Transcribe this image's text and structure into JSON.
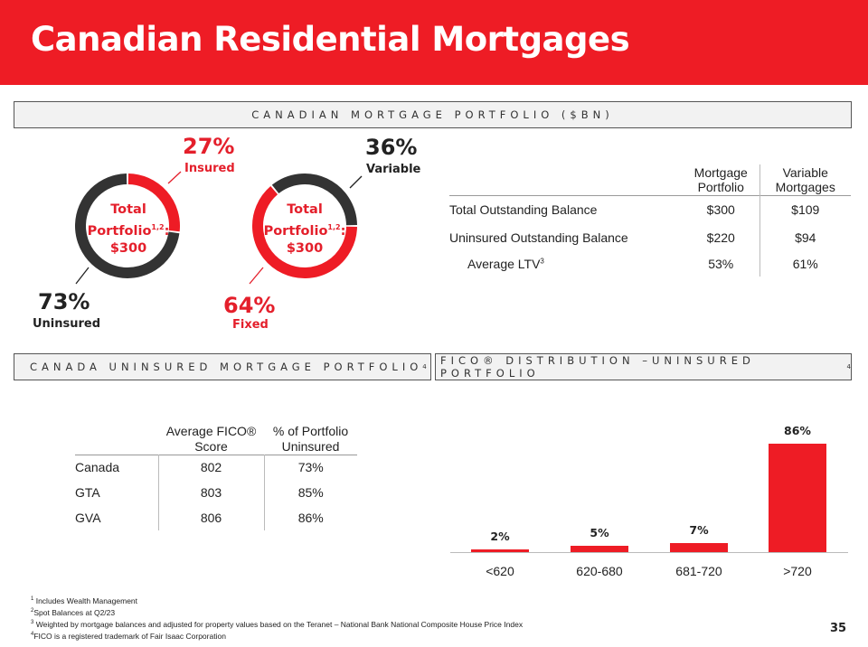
{
  "title": "Canadian Residential Mortgages",
  "sections": {
    "portfolio": "CANADIAN MORTGAGE PORTFOLIO ($BN)",
    "uninsured": "CANADA UNINSURED MORTGAGE PORTFOLIO",
    "fico": "FICO® DISTRIBUTION –UNINSURED PORTFOLIO",
    "footnote_ref": "4"
  },
  "donuts": [
    {
      "center_line1": "Total",
      "center_line2": "Portfolio",
      "center_sup": "1,2",
      "center_colon": ":",
      "center_value": "$300",
      "highlight_pct": "27%",
      "highlight_label": "Insured",
      "other_pct": "73%",
      "other_label": "Uninsured",
      "highlight_value": 27
    },
    {
      "center_line1": "Total",
      "center_line2": "Portfolio",
      "center_sup": "1,2",
      "center_colon": ":",
      "center_value": "$300",
      "highlight_pct": "64%",
      "highlight_label": "Fixed",
      "other_pct": "36%",
      "other_label": "Variable",
      "highlight_value": 64
    }
  ],
  "colors": {
    "red": "#ee1c25",
    "dark": "#333333"
  },
  "portfolio_table": {
    "headers": [
      "",
      "Mortgage Portfolio",
      "Variable Mortgages"
    ],
    "rows": [
      [
        "Total Outstanding Balance",
        "$300",
        "$109"
      ],
      [
        "Uninsured Outstanding Balance",
        "$220",
        "$94"
      ],
      [
        "Average LTV",
        "53%",
        "61%"
      ]
    ],
    "ltv_sup": "3"
  },
  "uninsured_table": {
    "headers": [
      "",
      "Average FICO® Score",
      "% of Portfolio Uninsured"
    ],
    "rows": [
      [
        "Canada",
        "802",
        "73%"
      ],
      [
        "GTA",
        "803",
        "85%"
      ],
      [
        "GVA",
        "806",
        "86%"
      ]
    ]
  },
  "chart_data": {
    "type": "bar",
    "categories": [
      "<620",
      "620-680",
      "681-720",
      ">720"
    ],
    "values": [
      2,
      5,
      7,
      86
    ],
    "data_labels": [
      "2%",
      "5%",
      "7%",
      "86%"
    ],
    "color": "#ee1c25"
  },
  "footnotes": [
    {
      "n": "1",
      "t": "Includes Wealth Management"
    },
    {
      "n": "2",
      "t": "Spot Balances at Q2/23"
    },
    {
      "n": "3",
      "t": "Weighted by mortgage balances and adjusted for property values based on the Teranet – National Bank National Composite House Price Index"
    },
    {
      "n": "4",
      "t": "FICO is a registered trademark of Fair Isaac Corporation"
    }
  ],
  "page_number": "35"
}
